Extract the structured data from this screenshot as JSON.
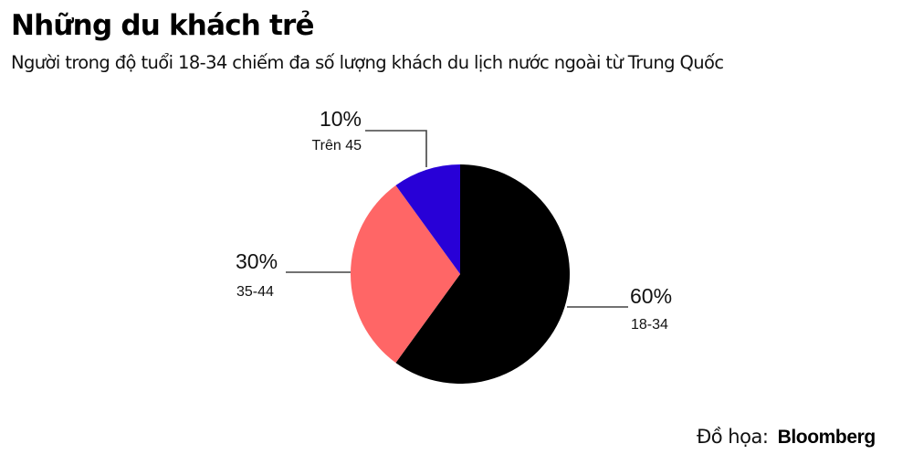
{
  "header": {
    "title": "Những du khách trẻ",
    "subtitle": "Người trong độ tuổi 18-34 chiếm đa số lượng khách du lịch nước ngoài từ Trung Quốc"
  },
  "footer": {
    "credit_label": "Đồ họa:",
    "brand": "Bloomberg"
  },
  "labels": {
    "s0_pct": "60%",
    "s0_cat": "18-34",
    "s1_pct": "30%",
    "s1_cat": "35-44",
    "s2_pct": "10%",
    "s2_cat": "Trên 45"
  },
  "colors": {
    "s0": "#000000",
    "s1": "#FF6666",
    "s2": "#2800D7",
    "leader": "#444444"
  },
  "chart_data": {
    "type": "pie",
    "title": "Những du khách trẻ",
    "subtitle": "Người trong độ tuổi 18-34 chiếm đa số lượng khách du lịch nước ngoài từ Trung Quốc",
    "categories": [
      "18-34",
      "35-44",
      "Trên 45"
    ],
    "values": [
      60,
      30,
      10
    ],
    "unit": "%",
    "colors": [
      "#000000",
      "#FF6666",
      "#2800D7"
    ],
    "start_angle": "12 o'clock, clockwise",
    "legend": "direct labels with leader lines",
    "source": "Đồ họa: Bloomberg"
  }
}
